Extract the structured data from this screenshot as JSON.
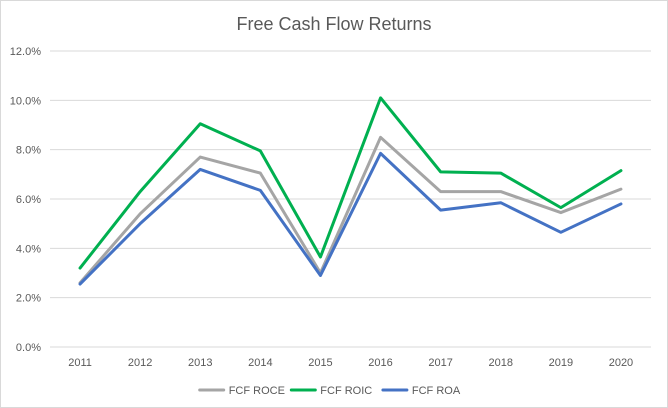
{
  "chart_data": {
    "type": "line",
    "title": "Free Cash Flow Returns",
    "xlabel": "",
    "ylabel": "",
    "categories": [
      "2011",
      "2012",
      "2013",
      "2014",
      "2015",
      "2016",
      "2017",
      "2018",
      "2019",
      "2020"
    ],
    "y_ticks": [
      "0.0%",
      "2.0%",
      "4.0%",
      "6.0%",
      "8.0%",
      "10.0%",
      "12.0%"
    ],
    "ylim": [
      0,
      12
    ],
    "grid": true,
    "legend_position": "bottom",
    "series": [
      {
        "name": "FCF ROCE",
        "color": "#a5a5a5",
        "values": [
          2.6,
          5.4,
          7.7,
          7.05,
          3.0,
          8.5,
          6.3,
          6.3,
          5.45,
          6.4
        ]
      },
      {
        "name": "FCF ROIC",
        "color": "#00b050",
        "values": [
          3.2,
          6.3,
          9.05,
          7.95,
          3.65,
          10.1,
          7.1,
          7.05,
          5.65,
          7.15
        ]
      },
      {
        "name": "FCF ROA",
        "color": "#4472c4",
        "values": [
          2.55,
          5.0,
          7.2,
          6.35,
          2.9,
          7.85,
          5.55,
          5.85,
          4.65,
          5.8
        ]
      }
    ]
  }
}
